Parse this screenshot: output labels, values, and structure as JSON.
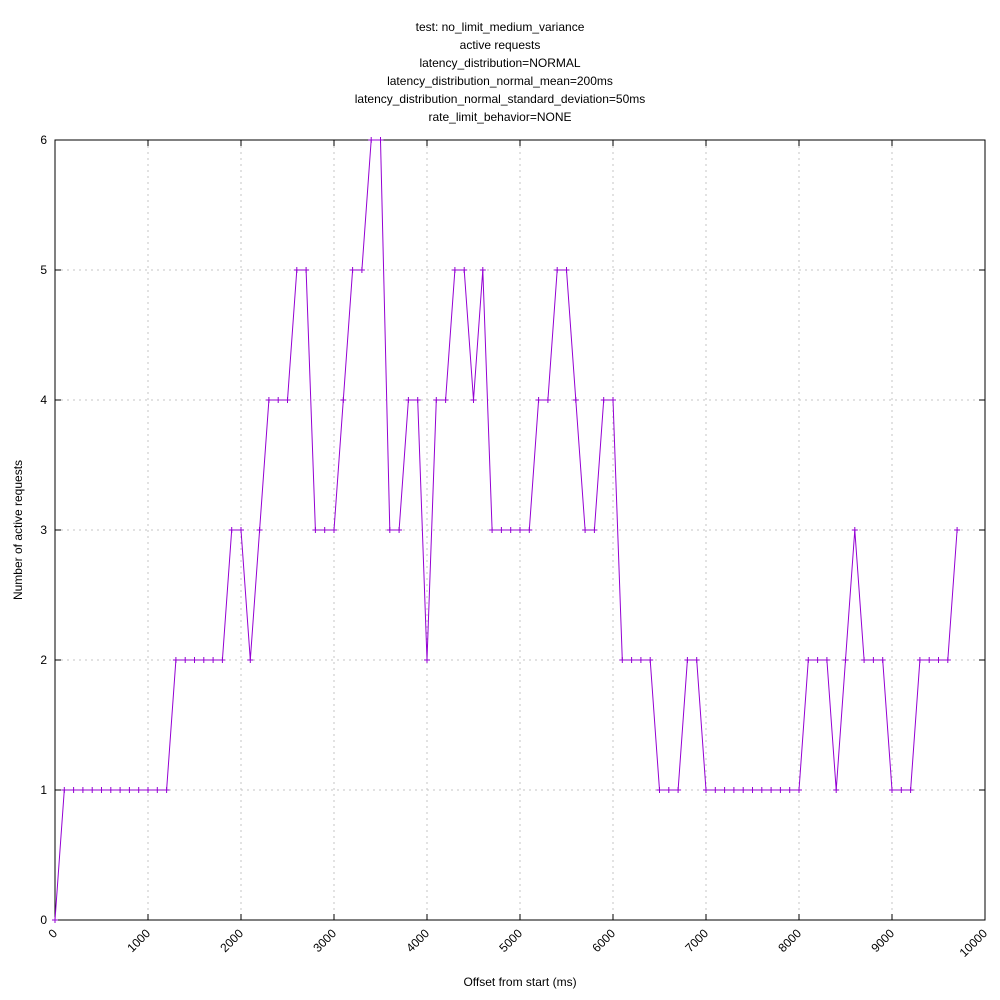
{
  "chart_data": {
    "type": "line",
    "title_lines": [
      "test: no_limit_medium_variance",
      "active requests",
      "latency_distribution=NORMAL",
      "latency_distribution_normal_mean=200ms",
      "latency_distribution_normal_standard_deviation=50ms",
      "rate_limit_behavior=NONE"
    ],
    "xlabel": "Offset from start (ms)",
    "ylabel": "Number of active requests",
    "xlim": [
      0,
      10000
    ],
    "ylim": [
      0,
      6
    ],
    "xticks": [
      0,
      1000,
      2000,
      3000,
      4000,
      5000,
      6000,
      7000,
      8000,
      9000,
      10000
    ],
    "yticks": [
      0,
      1,
      2,
      3,
      4,
      5,
      6
    ],
    "grid": true,
    "legend": "none",
    "line_color": "#9400d3",
    "grid_color": "#c4c4c4",
    "marker": "plus",
    "series": [
      {
        "name": "active requests",
        "x": [
          0,
          100,
          200,
          300,
          400,
          500,
          600,
          700,
          800,
          900,
          1000,
          1100,
          1200,
          1300,
          1400,
          1500,
          1600,
          1700,
          1800,
          1900,
          2000,
          2100,
          2200,
          2300,
          2400,
          2500,
          2600,
          2700,
          2800,
          2900,
          3000,
          3100,
          3200,
          3300,
          3400,
          3500,
          3600,
          3700,
          3800,
          3900,
          4000,
          4100,
          4200,
          4300,
          4400,
          4500,
          4600,
          4700,
          4800,
          4900,
          5000,
          5100,
          5200,
          5300,
          5400,
          5500,
          5600,
          5700,
          5800,
          5900,
          6000,
          6100,
          6200,
          6300,
          6400,
          6500,
          6600,
          6700,
          6800,
          6900,
          7000,
          7100,
          7200,
          7300,
          7400,
          7500,
          7600,
          7700,
          7800,
          7900,
          8000,
          8100,
          8200,
          8300,
          8400,
          8500,
          8600,
          8700,
          8800,
          8900,
          9000,
          9100,
          9200,
          9300,
          9400,
          9500,
          9600,
          9700
        ],
        "y": [
          0,
          1,
          1,
          1,
          1,
          1,
          1,
          1,
          1,
          1,
          1,
          1,
          1,
          2,
          2,
          2,
          2,
          2,
          2,
          3,
          3,
          2,
          3,
          4,
          4,
          4,
          5,
          5,
          3,
          3,
          3,
          4,
          5,
          5,
          6,
          6,
          3,
          3,
          4,
          4,
          2,
          4,
          4,
          5,
          5,
          4,
          5,
          3,
          3,
          3,
          3,
          3,
          4,
          4,
          5,
          5,
          4,
          3,
          3,
          4,
          4,
          2,
          2,
          2,
          2,
          1,
          1,
          1,
          2,
          2,
          1,
          1,
          1,
          1,
          1,
          1,
          1,
          1,
          1,
          1,
          1,
          2,
          2,
          2,
          1,
          2,
          3,
          2,
          2,
          2,
          1,
          1,
          1,
          2,
          2,
          2,
          2,
          3
        ]
      }
    ]
  }
}
